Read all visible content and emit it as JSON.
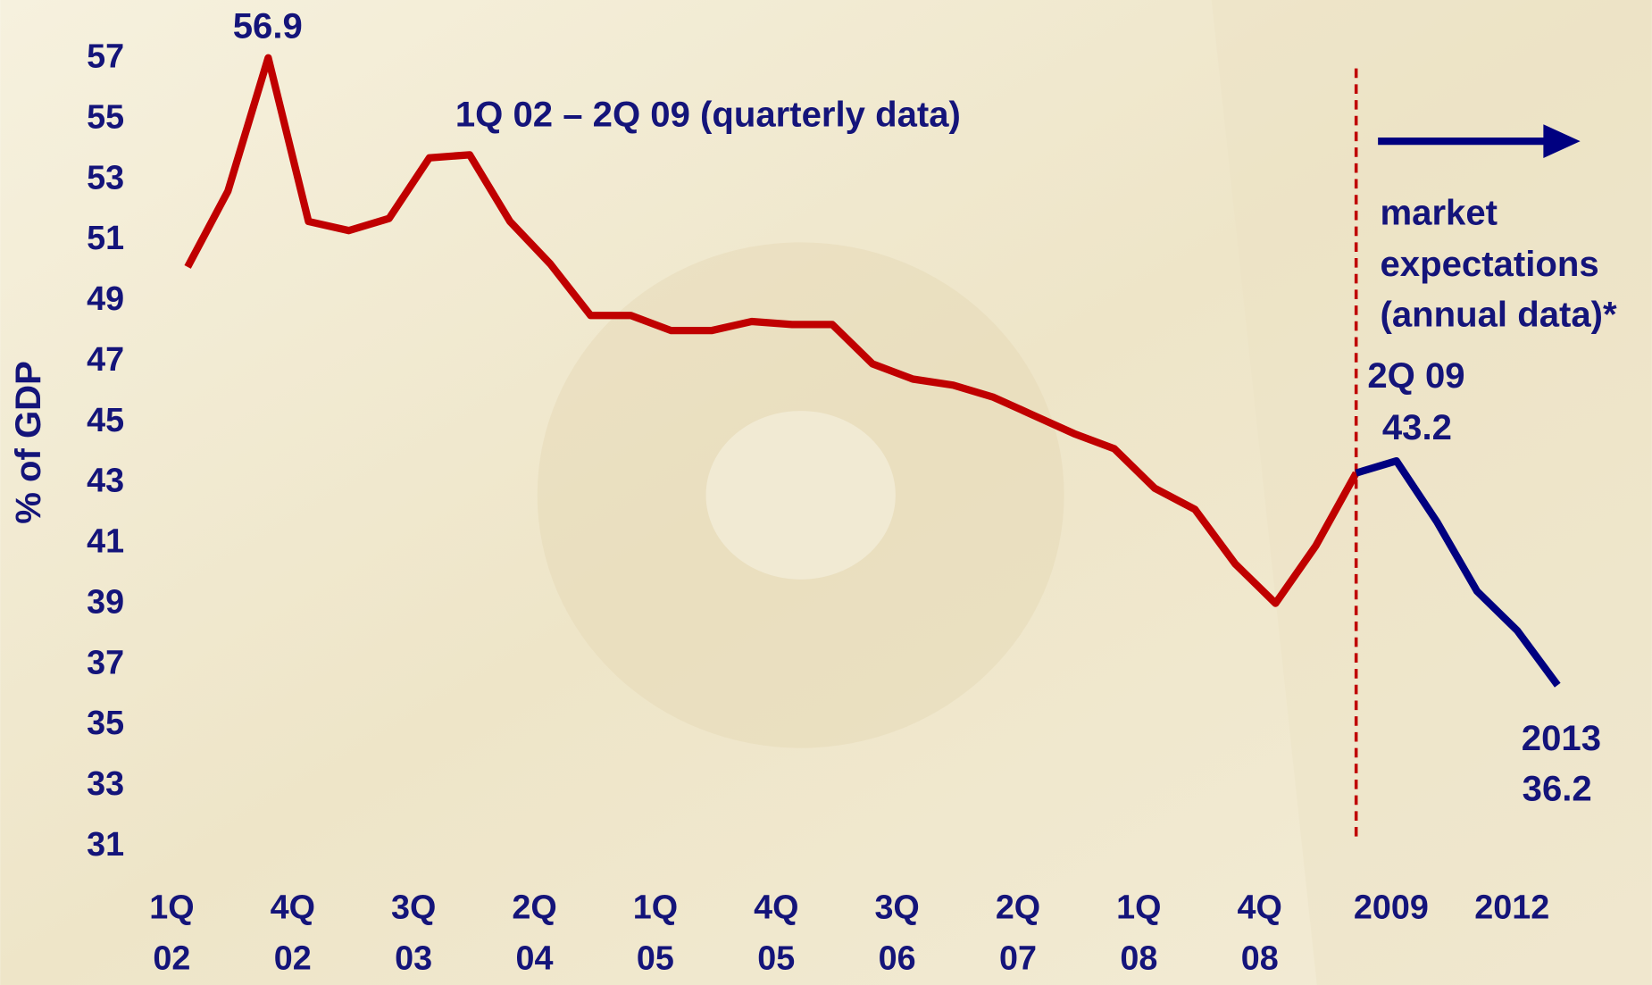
{
  "chart_data": {
    "type": "line",
    "y_label": "% of GDP",
    "categories": [
      "1Q 02",
      null,
      null,
      "4Q 02",
      null,
      null,
      "3Q 03",
      null,
      null,
      "2Q 04",
      null,
      null,
      "1Q 05",
      null,
      null,
      "4Q 05",
      null,
      null,
      "3Q 06",
      null,
      null,
      "2Q 07",
      null,
      null,
      "1Q 08",
      null,
      null,
      "4Q 08",
      null,
      null,
      "2009",
      null,
      null,
      "2012",
      null
    ],
    "series": [
      {
        "color": "#c00000",
        "values": [
          50.0,
          52.5,
          56.9,
          51.5,
          51.2,
          51.6,
          53.6,
          53.7,
          51.5,
          50.1,
          48.4,
          48.4,
          47.9,
          47.9,
          48.2,
          48.1,
          48.1,
          46.8,
          46.3,
          46.1,
          45.7,
          45.1,
          44.5,
          44.0,
          42.7,
          42.0,
          40.2,
          38.9,
          40.8,
          43.2,
          null,
          null,
          null,
          null,
          null
        ]
      },
      {
        "color": "#000080",
        "values": [
          null,
          null,
          null,
          null,
          null,
          null,
          null,
          null,
          null,
          null,
          null,
          null,
          null,
          null,
          null,
          null,
          null,
          null,
          null,
          null,
          null,
          null,
          null,
          null,
          null,
          null,
          null,
          null,
          null,
          43.2,
          43.6,
          41.6,
          39.3,
          38.0,
          36.2
        ]
      }
    ],
    "ylim": [
      31,
      57
    ],
    "yticks": [
      31,
      33,
      35,
      37,
      39,
      41,
      43,
      45,
      47,
      49,
      51,
      53,
      55,
      57
    ],
    "divider_color": "#c00000",
    "annotations": [
      "56.9",
      "1Q 02 – 2Q 09 (quarterly data)",
      "market",
      "expectations",
      "(annual data)*",
      "2Q 09",
      "43.2",
      "2013",
      "36.2"
    ]
  }
}
